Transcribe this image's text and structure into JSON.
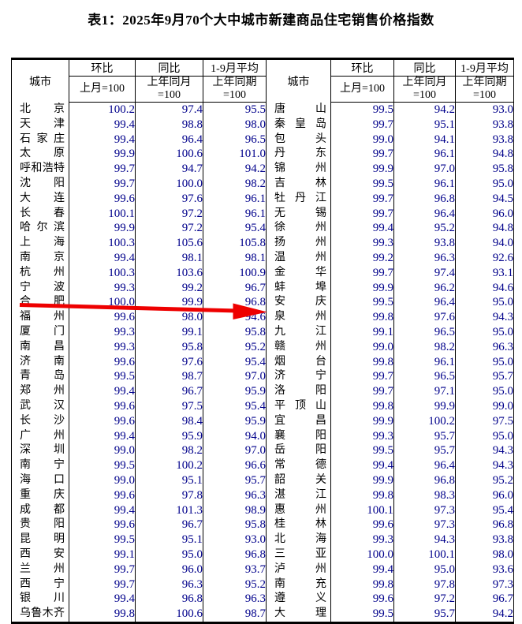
{
  "title": "表1：2025年9月70个大中城市新建商品住宅销售价格指数",
  "colors": {
    "text": "#000000",
    "number": "#00008B",
    "border": "#000000",
    "arrow": "#EE0000",
    "background": "#FFFFFF"
  },
  "header": {
    "city": "城市",
    "cols": [
      {
        "top": "环比",
        "sub1": "上月=100",
        "sub2": ""
      },
      {
        "top": "同比",
        "sub1": "上年同月",
        "sub2": "=100"
      },
      {
        "top": "1-9月平均",
        "sub1": "上年同期",
        "sub2": "=100"
      }
    ]
  },
  "table": {
    "left_rows": [
      [
        "北京",
        "100.2",
        "97.4",
        "95.5"
      ],
      [
        "天津",
        "99.4",
        "98.8",
        "98.0"
      ],
      [
        "石家庄",
        "99.4",
        "96.4",
        "96.5"
      ],
      [
        "太原",
        "99.9",
        "100.6",
        "101.0"
      ],
      [
        "呼和浩特",
        "99.7",
        "94.7",
        "94.2"
      ],
      [
        "沈阳",
        "99.7",
        "100.0",
        "98.2"
      ],
      [
        "大连",
        "99.6",
        "97.6",
        "96.1"
      ],
      [
        "长春",
        "100.1",
        "97.2",
        "96.1"
      ],
      [
        "哈尔滨",
        "99.9",
        "97.2",
        "95.4"
      ],
      [
        "上海",
        "100.3",
        "105.6",
        "105.8"
      ],
      [
        "南京",
        "99.4",
        "98.1",
        "98.1"
      ],
      [
        "杭州",
        "100.3",
        "103.6",
        "100.9"
      ],
      [
        "宁波",
        "99.3",
        "99.2",
        "96.7"
      ],
      [
        "合肥",
        "100.0",
        "99.9",
        "96.8"
      ],
      [
        "福州",
        "99.6",
        "98.0",
        "94.6"
      ],
      [
        "厦门",
        "99.3",
        "99.1",
        "95.8"
      ],
      [
        "南昌",
        "99.3",
        "95.8",
        "95.2"
      ],
      [
        "济南",
        "99.6",
        "97.6",
        "95.4"
      ],
      [
        "青岛",
        "99.5",
        "98.7",
        "97.0"
      ],
      [
        "郑州",
        "99.4",
        "96.7",
        "95.9"
      ],
      [
        "武汉",
        "99.6",
        "97.5",
        "95.4"
      ],
      [
        "长沙",
        "99.6",
        "98.4",
        "95.9"
      ],
      [
        "广州",
        "99.4",
        "95.9",
        "94.0"
      ],
      [
        "深圳",
        "99.0",
        "98.2",
        "97.0"
      ],
      [
        "南宁",
        "99.5",
        "100.2",
        "96.6"
      ],
      [
        "海口",
        "99.0",
        "95.1",
        "95.7"
      ],
      [
        "重庆",
        "99.6",
        "97.8",
        "96.3"
      ],
      [
        "成都",
        "99.4",
        "101.3",
        "98.9"
      ],
      [
        "贵阳",
        "99.6",
        "96.7",
        "95.8"
      ],
      [
        "昆明",
        "99.5",
        "95.1",
        "93.0"
      ],
      [
        "西安",
        "99.1",
        "95.0",
        "96.8"
      ],
      [
        "兰州",
        "99.7",
        "96.0",
        "93.7"
      ],
      [
        "西宁",
        "99.7",
        "96.3",
        "95.2"
      ],
      [
        "银川",
        "99.4",
        "96.8",
        "96.3"
      ],
      [
        "乌鲁木齐",
        "99.8",
        "100.6",
        "98.7"
      ]
    ],
    "right_rows": [
      [
        "唐山",
        "99.5",
        "94.2",
        "93.0"
      ],
      [
        "秦皇岛",
        "99.7",
        "95.1",
        "93.8"
      ],
      [
        "包头",
        "99.0",
        "94.1",
        "93.8"
      ],
      [
        "丹东",
        "99.7",
        "96.1",
        "94.8"
      ],
      [
        "锦州",
        "99.9",
        "97.0",
        "95.8"
      ],
      [
        "吉林",
        "99.5",
        "96.1",
        "95.0"
      ],
      [
        "牡丹江",
        "99.7",
        "96.8",
        "94.5"
      ],
      [
        "无锡",
        "99.7",
        "96.4",
        "96.0"
      ],
      [
        "徐州",
        "99.4",
        "95.2",
        "94.8"
      ],
      [
        "扬州",
        "99.3",
        "93.8",
        "94.0"
      ],
      [
        "温州",
        "99.2",
        "96.3",
        "92.6"
      ],
      [
        "金华",
        "99.7",
        "97.4",
        "93.1"
      ],
      [
        "蚌埠",
        "99.9",
        "96.2",
        "94.6"
      ],
      [
        "安庆",
        "99.5",
        "96.4",
        "95.0"
      ],
      [
        "泉州",
        "99.8",
        "97.6",
        "94.3"
      ],
      [
        "九江",
        "99.1",
        "96.5",
        "95.0"
      ],
      [
        "赣州",
        "99.0",
        "98.2",
        "96.3"
      ],
      [
        "烟台",
        "99.8",
        "96.1",
        "95.0"
      ],
      [
        "济宁",
        "99.7",
        "96.5",
        "95.7"
      ],
      [
        "洛阳",
        "99.7",
        "97.1",
        "95.0"
      ],
      [
        "平顶山",
        "99.8",
        "99.9",
        "99.0"
      ],
      [
        "宜昌",
        "99.9",
        "100.2",
        "97.5"
      ],
      [
        "襄阳",
        "99.3",
        "95.7",
        "95.0"
      ],
      [
        "岳阳",
        "99.5",
        "95.7",
        "94.3"
      ],
      [
        "常德",
        "99.4",
        "96.4",
        "94.3"
      ],
      [
        "韶关",
        "99.9",
        "96.8",
        "95.2"
      ],
      [
        "湛江",
        "99.8",
        "98.3",
        "96.0"
      ],
      [
        "惠州",
        "100.1",
        "97.3",
        "95.4"
      ],
      [
        "桂林",
        "99.6",
        "97.3",
        "96.8"
      ],
      [
        "北海",
        "99.3",
        "94.3",
        "93.8"
      ],
      [
        "三亚",
        "100.0",
        "100.1",
        "98.0"
      ],
      [
        "泸州",
        "99.4",
        "95.0",
        "93.6"
      ],
      [
        "南充",
        "99.8",
        "97.8",
        "97.3"
      ],
      [
        "遵义",
        "99.6",
        "97.2",
        "96.7"
      ],
      [
        "大理",
        "99.5",
        "95.7",
        "94.2"
      ]
    ]
  },
  "annotation": {
    "type": "arrow",
    "color": "#EE0000"
  }
}
